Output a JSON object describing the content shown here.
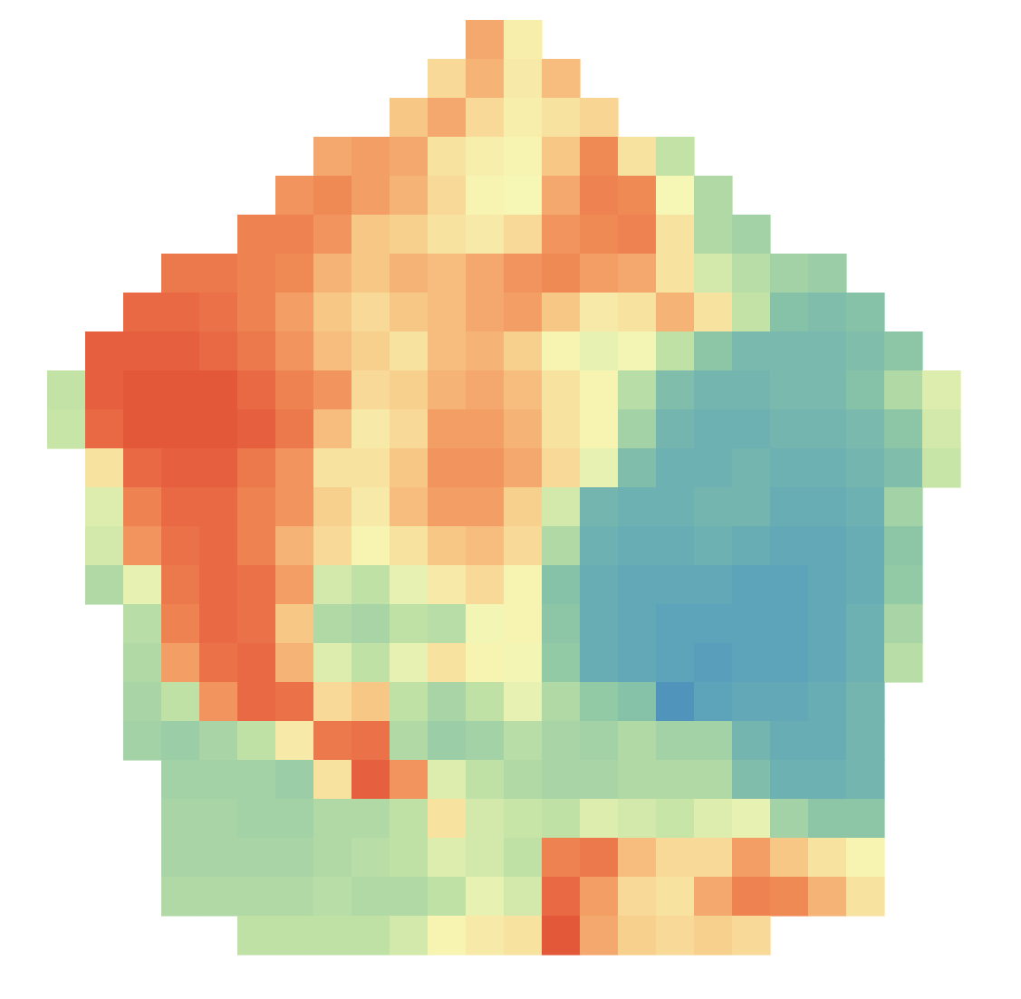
{
  "chart_data": {
    "type": "heatmap",
    "tick_labels": false,
    "vlim": [
      0,
      100
    ],
    "cells": [
      [
        null,
        null,
        null,
        null,
        null,
        null,
        null,
        null,
        null,
        null,
        null,
        72,
        57,
        null,
        null,
        null,
        null,
        null,
        null,
        null,
        null,
        null,
        null,
        null
      ],
      [
        null,
        null,
        null,
        null,
        null,
        null,
        null,
        null,
        null,
        null,
        62,
        70,
        58,
        68,
        null,
        null,
        null,
        null,
        null,
        null,
        null,
        null,
        null,
        null
      ],
      [
        null,
        null,
        null,
        null,
        null,
        null,
        null,
        null,
        null,
        66,
        72,
        62,
        57,
        60,
        63,
        null,
        null,
        null,
        null,
        null,
        null,
        null,
        null,
        null
      ],
      [
        null,
        null,
        null,
        null,
        null,
        null,
        null,
        72,
        74,
        72,
        60,
        57,
        56,
        66,
        78,
        60,
        45,
        null,
        null,
        null,
        null,
        null,
        null,
        null
      ],
      [
        null,
        null,
        null,
        null,
        null,
        null,
        76,
        78,
        74,
        70,
        62,
        56,
        55,
        72,
        80,
        78,
        55,
        40,
        null,
        null,
        null,
        null,
        null,
        null
      ],
      [
        null,
        null,
        null,
        null,
        null,
        80,
        80,
        76,
        66,
        64,
        60,
        58,
        62,
        76,
        78,
        80,
        60,
        40,
        36,
        null,
        null,
        null,
        null,
        null
      ],
      [
        null,
        null,
        null,
        82,
        82,
        80,
        78,
        70,
        66,
        70,
        68,
        72,
        76,
        78,
        74,
        72,
        60,
        48,
        42,
        36,
        34,
        null,
        null,
        null
      ],
      [
        null,
        null,
        86,
        86,
        84,
        80,
        74,
        66,
        62,
        66,
        68,
        72,
        74,
        66,
        58,
        60,
        70,
        60,
        45,
        28,
        26,
        28,
        null,
        null
      ],
      [
        null,
        88,
        88,
        88,
        86,
        82,
        76,
        68,
        64,
        60,
        68,
        70,
        64,
        56,
        52,
        54,
        44,
        30,
        24,
        24,
        24,
        26,
        30,
        null
      ],
      [
        45,
        88,
        90,
        90,
        90,
        86,
        80,
        76,
        62,
        64,
        70,
        72,
        68,
        60,
        56,
        42,
        26,
        22,
        22,
        24,
        24,
        28,
        40,
        50
      ],
      [
        46,
        86,
        90,
        90,
        90,
        88,
        82,
        68,
        58,
        62,
        74,
        74,
        70,
        60,
        56,
        36,
        22,
        20,
        20,
        22,
        22,
        24,
        30,
        48
      ],
      [
        null,
        60,
        86,
        88,
        88,
        82,
        76,
        60,
        60,
        66,
        76,
        76,
        72,
        62,
        52,
        26,
        20,
        20,
        22,
        20,
        20,
        22,
        26,
        46
      ],
      [
        null,
        50,
        80,
        86,
        86,
        80,
        76,
        64,
        58,
        68,
        74,
        74,
        64,
        48,
        22,
        20,
        20,
        22,
        22,
        18,
        18,
        20,
        36,
        null
      ],
      [
        null,
        48,
        76,
        84,
        86,
        80,
        70,
        62,
        56,
        60,
        66,
        68,
        62,
        40,
        20,
        18,
        18,
        20,
        18,
        16,
        16,
        18,
        30,
        null
      ],
      [
        null,
        40,
        52,
        82,
        86,
        84,
        74,
        48,
        44,
        52,
        58,
        62,
        56,
        28,
        18,
        16,
        16,
        16,
        14,
        14,
        16,
        18,
        32,
        null
      ],
      [
        null,
        null,
        42,
        80,
        86,
        84,
        66,
        40,
        38,
        44,
        42,
        54,
        56,
        30,
        18,
        16,
        14,
        14,
        14,
        14,
        16,
        20,
        38,
        null
      ],
      [
        null,
        null,
        40,
        74,
        84,
        86,
        70,
        50,
        44,
        52,
        60,
        56,
        54,
        32,
        18,
        16,
        14,
        12,
        14,
        14,
        16,
        20,
        42,
        null
      ],
      [
        null,
        null,
        38,
        44,
        76,
        86,
        84,
        62,
        66,
        44,
        38,
        44,
        52,
        40,
        32,
        28,
        8,
        14,
        16,
        16,
        18,
        22,
        null,
        null
      ],
      [
        null,
        null,
        36,
        34,
        38,
        44,
        58,
        82,
        84,
        40,
        34,
        36,
        42,
        38,
        36,
        40,
        36,
        36,
        22,
        18,
        18,
        22,
        null,
        null
      ],
      [
        null,
        null,
        null,
        36,
        36,
        36,
        34,
        60,
        88,
        76,
        50,
        44,
        40,
        38,
        38,
        40,
        40,
        40,
        26,
        20,
        20,
        22,
        null,
        null
      ],
      [
        null,
        null,
        null,
        38,
        38,
        36,
        36,
        40,
        40,
        44,
        60,
        48,
        46,
        44,
        50,
        48,
        46,
        50,
        52,
        36,
        30,
        30,
        null,
        null
      ],
      [
        null,
        null,
        null,
        38,
        38,
        38,
        38,
        40,
        42,
        44,
        50,
        48,
        44,
        80,
        82,
        68,
        62,
        62,
        74,
        66,
        60,
        56,
        null,
        null
      ],
      [
        null,
        null,
        null,
        40,
        40,
        40,
        40,
        42,
        40,
        40,
        44,
        52,
        48,
        86,
        74,
        62,
        60,
        72,
        80,
        78,
        70,
        60,
        null,
        null
      ],
      [
        null,
        null,
        null,
        null,
        null,
        44,
        44,
        44,
        44,
        48,
        56,
        58,
        60,
        90,
        72,
        64,
        62,
        64,
        62,
        null,
        null,
        null,
        null,
        null
      ]
    ]
  }
}
